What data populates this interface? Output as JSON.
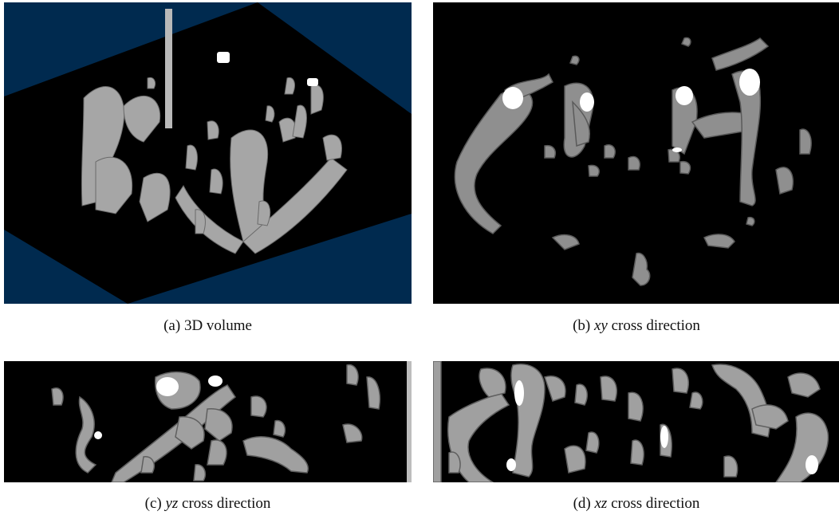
{
  "figure": {
    "panels": [
      {
        "id": "a",
        "label": "(a)",
        "text_before": "3D volume",
        "italic": "",
        "text_after": ""
      },
      {
        "id": "b",
        "label": "(b)",
        "text_before": "",
        "italic": "xy",
        "text_after": "cross direction"
      },
      {
        "id": "c",
        "label": "(c)",
        "text_before": "",
        "italic": "yz",
        "text_after": "cross direction"
      },
      {
        "id": "d",
        "label": "(d)",
        "text_before": "",
        "italic": "xz",
        "text_after": "cross direction"
      }
    ]
  },
  "colors": {
    "volume_background": "#002a4f",
    "slice_background": "#000000",
    "vessel_fill": "#9b9b9b",
    "vessel_highlight": "#ffffff",
    "contour_line": "#5f5f5f"
  }
}
